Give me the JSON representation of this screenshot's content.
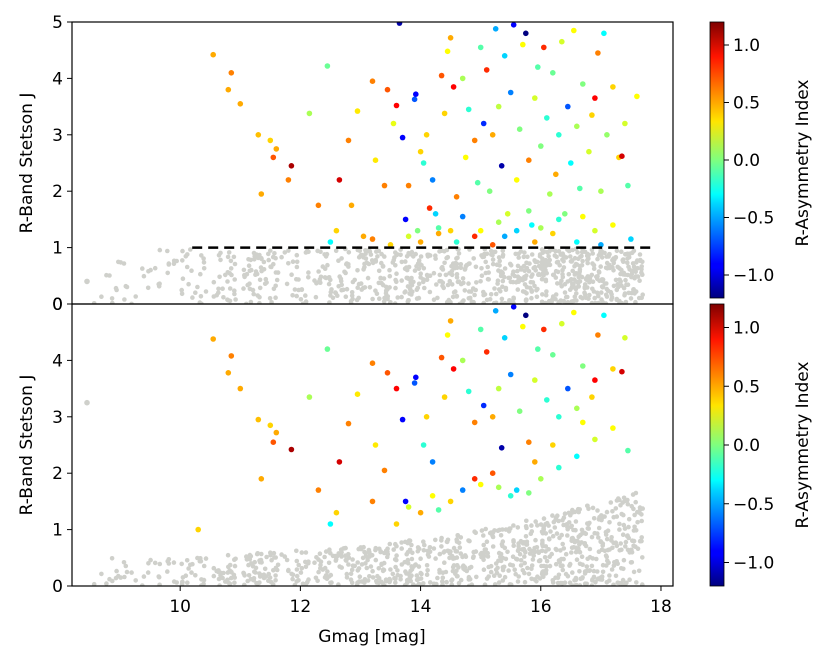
{
  "chart_data": {
    "type": "scatter",
    "xlabel": "Gmag [mag]",
    "xlim": [
      8.2,
      18.2
    ],
    "x_ticks": [
      "10",
      "12",
      "14",
      "16",
      "18"
    ],
    "panels": [
      {
        "name": "top",
        "ylabel": "R-Band Stetson J",
        "ylim": [
          0,
          5
        ],
        "y_ticks": [
          "0",
          "1",
          "2",
          "3",
          "4",
          "5"
        ],
        "threshold": {
          "y": 1.0,
          "style": "dashed",
          "color": "#000000",
          "x_range": [
            10.2,
            17.9
          ]
        },
        "colored_points": [
          [
            10.55,
            4.42,
            0.5
          ],
          [
            10.85,
            4.1,
            0.6
          ],
          [
            10.8,
            3.8,
            0.5
          ],
          [
            11.0,
            3.55,
            0.5
          ],
          [
            11.3,
            3.0,
            0.45
          ],
          [
            11.5,
            2.9,
            0.4
          ],
          [
            11.55,
            2.6,
            0.7
          ],
          [
            11.6,
            2.75,
            0.5
          ],
          [
            11.8,
            2.2,
            0.6
          ],
          [
            11.85,
            2.45,
            1.1
          ],
          [
            11.35,
            1.95,
            0.5
          ],
          [
            12.15,
            3.38,
            0.1
          ],
          [
            12.3,
            1.75,
            0.6
          ],
          [
            12.45,
            4.22,
            -0.05
          ],
          [
            12.65,
            2.2,
            1.0
          ],
          [
            12.8,
            2.9,
            0.6
          ],
          [
            12.85,
            1.75,
            0.5
          ],
          [
            12.95,
            3.42,
            0.35
          ],
          [
            13.05,
            1.2,
            0.5
          ],
          [
            13.2,
            3.95,
            0.6
          ],
          [
            13.25,
            2.55,
            0.35
          ],
          [
            13.4,
            2.1,
            0.6
          ],
          [
            13.45,
            3.8,
            0.7
          ],
          [
            13.55,
            3.2,
            0.25
          ],
          [
            13.6,
            3.52,
            0.9
          ],
          [
            13.65,
            4.98,
            -1.1
          ],
          [
            13.7,
            2.95,
            -0.9
          ],
          [
            13.75,
            1.5,
            -0.9
          ],
          [
            13.8,
            2.1,
            0.6
          ],
          [
            13.9,
            3.63,
            -0.7
          ],
          [
            13.92,
            3.72,
            -0.9
          ],
          [
            13.95,
            1.3,
            0.0
          ],
          [
            14.0,
            2.7,
            0.4
          ],
          [
            14.05,
            2.5,
            -0.2
          ],
          [
            14.1,
            3.0,
            0.4
          ],
          [
            14.15,
            1.7,
            0.8
          ],
          [
            14.2,
            2.2,
            -0.6
          ],
          [
            14.25,
            1.6,
            -0.4
          ],
          [
            14.3,
            1.25,
            0.5
          ],
          [
            14.35,
            4.05,
            0.7
          ],
          [
            14.4,
            3.38,
            0.4
          ],
          [
            14.45,
            4.48,
            0.3
          ],
          [
            14.5,
            4.72,
            0.5
          ],
          [
            14.55,
            3.85,
            0.9
          ],
          [
            14.6,
            1.9,
            0.6
          ],
          [
            14.7,
            4.0,
            0.1
          ],
          [
            14.75,
            2.6,
            0.3
          ],
          [
            14.8,
            3.45,
            -0.2
          ],
          [
            14.9,
            2.9,
            0.6
          ],
          [
            14.95,
            2.15,
            -0.1
          ],
          [
            15.0,
            4.55,
            -0.1
          ],
          [
            15.05,
            3.2,
            -0.8
          ],
          [
            15.1,
            4.15,
            0.8
          ],
          [
            15.15,
            2.0,
            0.0
          ],
          [
            15.2,
            3.0,
            0.5
          ],
          [
            15.25,
            4.88,
            -0.5
          ],
          [
            15.3,
            3.5,
            0.15
          ],
          [
            15.35,
            2.45,
            -1.1
          ],
          [
            15.4,
            4.4,
            -0.4
          ],
          [
            15.45,
            1.6,
            0.2
          ],
          [
            15.5,
            3.75,
            -0.6
          ],
          [
            15.55,
            4.95,
            -0.9
          ],
          [
            15.6,
            2.2,
            0.3
          ],
          [
            15.65,
            3.1,
            0.0
          ],
          [
            15.7,
            4.6,
            0.3
          ],
          [
            15.75,
            4.8,
            -1.2
          ],
          [
            15.8,
            2.55,
            0.6
          ],
          [
            15.85,
            1.4,
            -0.3
          ],
          [
            15.9,
            3.65,
            0.2
          ],
          [
            15.95,
            4.2,
            -0.1
          ],
          [
            16.0,
            2.8,
            0.0
          ],
          [
            16.05,
            4.55,
            0.8
          ],
          [
            16.1,
            3.3,
            -0.2
          ],
          [
            16.15,
            1.95,
            0.1
          ],
          [
            16.2,
            4.1,
            -0.05
          ],
          [
            16.25,
            2.3,
            0.5
          ],
          [
            16.3,
            3.0,
            -0.2
          ],
          [
            16.35,
            4.65,
            0.2
          ],
          [
            16.4,
            1.6,
            0.0
          ],
          [
            16.45,
            3.5,
            -0.7
          ],
          [
            16.5,
            2.5,
            -0.3
          ],
          [
            16.55,
            4.85,
            0.3
          ],
          [
            16.6,
            3.15,
            0.1
          ],
          [
            16.65,
            2.05,
            -0.1
          ],
          [
            16.7,
            3.9,
            0.0
          ],
          [
            16.8,
            2.7,
            0.2
          ],
          [
            16.85,
            3.35,
            0.4
          ],
          [
            16.9,
            3.65,
            0.9
          ],
          [
            16.95,
            4.45,
            0.6
          ],
          [
            17.0,
            2.0,
            0.1
          ],
          [
            17.05,
            4.8,
            -0.3
          ],
          [
            17.1,
            3.0,
            0.05
          ],
          [
            17.2,
            3.85,
            0.4
          ],
          [
            17.3,
            2.6,
            0.4
          ],
          [
            17.35,
            2.62,
            1.0
          ],
          [
            17.4,
            3.2,
            0.2
          ],
          [
            17.45,
            2.1,
            -0.1
          ],
          [
            17.6,
            3.68,
            0.3
          ],
          [
            17.5,
            1.15,
            -0.4
          ],
          [
            15.9,
            1.1,
            0.5
          ],
          [
            14.6,
            1.1,
            -0.2
          ],
          [
            13.5,
            1.05,
            0.4
          ],
          [
            12.6,
            1.3,
            0.4
          ],
          [
            12.5,
            1.1,
            -0.3
          ],
          [
            15.2,
            1.05,
            0.7
          ],
          [
            16.6,
            1.1,
            -0.3
          ],
          [
            17.0,
            1.05,
            -0.5
          ],
          [
            14.9,
            1.2,
            0.8
          ],
          [
            16.2,
            1.25,
            0.4
          ],
          [
            15.6,
            1.3,
            -0.4
          ],
          [
            14.3,
            1.35,
            -0.1
          ],
          [
            15.3,
            1.45,
            0.1
          ],
          [
            15.0,
            1.3,
            0.3
          ],
          [
            16.9,
            1.3,
            0.2
          ],
          [
            13.2,
            1.15,
            0.6
          ],
          [
            14.0,
            1.1,
            0.5
          ],
          [
            16.3,
            1.5,
            -0.2
          ],
          [
            14.7,
            1.55,
            -0.6
          ],
          [
            15.8,
            1.65,
            0.0
          ],
          [
            17.2,
            1.4,
            0.3
          ],
          [
            13.8,
            1.2,
            0.2
          ],
          [
            14.5,
            1.3,
            0.4
          ],
          [
            15.4,
            1.2,
            -0.5
          ],
          [
            16.0,
            1.35,
            0.1
          ],
          [
            16.7,
            1.55,
            0.3
          ]
        ]
      },
      {
        "name": "bottom",
        "ylabel": "R-Band Stetson J",
        "ylim": [
          0,
          5
        ],
        "y_ticks": [
          "0",
          "1",
          "2",
          "3",
          "4"
        ],
        "colored_points": [
          [
            10.55,
            4.38,
            0.5
          ],
          [
            10.85,
            4.08,
            0.6
          ],
          [
            10.8,
            3.78,
            0.5
          ],
          [
            11.0,
            3.5,
            0.5
          ],
          [
            11.3,
            2.95,
            0.45
          ],
          [
            11.5,
            2.85,
            0.4
          ],
          [
            11.55,
            2.55,
            0.7
          ],
          [
            11.6,
            2.72,
            0.5
          ],
          [
            11.85,
            2.42,
            1.1
          ],
          [
            11.35,
            1.9,
            0.5
          ],
          [
            12.15,
            3.35,
            0.1
          ],
          [
            12.3,
            1.7,
            0.6
          ],
          [
            12.45,
            4.2,
            -0.05
          ],
          [
            12.65,
            2.2,
            1.0
          ],
          [
            12.8,
            2.88,
            0.6
          ],
          [
            12.95,
            3.4,
            0.35
          ],
          [
            13.2,
            3.95,
            0.6
          ],
          [
            13.25,
            2.5,
            0.35
          ],
          [
            13.4,
            2.05,
            0.6
          ],
          [
            13.45,
            3.78,
            0.7
          ],
          [
            13.6,
            3.5,
            0.9
          ],
          [
            13.7,
            2.95,
            -0.9
          ],
          [
            13.75,
            1.5,
            -0.9
          ],
          [
            13.9,
            3.6,
            -0.7
          ],
          [
            13.92,
            3.7,
            -0.9
          ],
          [
            14.05,
            2.5,
            -0.2
          ],
          [
            14.1,
            3.0,
            0.4
          ],
          [
            14.2,
            2.2,
            -0.6
          ],
          [
            14.35,
            4.05,
            0.7
          ],
          [
            14.4,
            3.35,
            0.4
          ],
          [
            14.45,
            4.45,
            0.3
          ],
          [
            14.5,
            4.7,
            0.5
          ],
          [
            14.55,
            3.85,
            0.9
          ],
          [
            14.7,
            4.0,
            0.1
          ],
          [
            14.8,
            3.45,
            -0.2
          ],
          [
            14.9,
            2.9,
            0.6
          ],
          [
            15.0,
            4.55,
            -0.1
          ],
          [
            15.05,
            3.2,
            -0.8
          ],
          [
            15.1,
            4.15,
            0.8
          ],
          [
            15.2,
            3.0,
            0.5
          ],
          [
            15.25,
            4.88,
            -0.5
          ],
          [
            15.3,
            3.5,
            0.15
          ],
          [
            15.35,
            2.45,
            -1.1
          ],
          [
            15.4,
            4.4,
            -0.4
          ],
          [
            15.5,
            3.75,
            -0.6
          ],
          [
            15.55,
            4.95,
            -0.9
          ],
          [
            15.65,
            3.1,
            0.0
          ],
          [
            15.7,
            4.6,
            0.3
          ],
          [
            15.75,
            4.8,
            -1.2
          ],
          [
            15.8,
            2.55,
            0.6
          ],
          [
            15.9,
            3.65,
            0.2
          ],
          [
            15.95,
            4.2,
            -0.1
          ],
          [
            16.05,
            4.55,
            0.8
          ],
          [
            16.1,
            3.3,
            -0.2
          ],
          [
            16.2,
            4.1,
            -0.05
          ],
          [
            16.3,
            3.0,
            -0.2
          ],
          [
            16.35,
            4.65,
            0.2
          ],
          [
            16.45,
            3.5,
            -0.7
          ],
          [
            16.55,
            4.85,
            0.3
          ],
          [
            16.6,
            3.15,
            0.1
          ],
          [
            16.7,
            3.9,
            0.0
          ],
          [
            16.85,
            3.35,
            0.4
          ],
          [
            16.9,
            3.65,
            0.9
          ],
          [
            16.95,
            4.45,
            0.6
          ],
          [
            17.05,
            4.8,
            -0.3
          ],
          [
            17.2,
            3.85,
            0.4
          ],
          [
            17.35,
            3.8,
            1.0
          ],
          [
            17.4,
            4.4,
            0.2
          ],
          [
            17.45,
            2.4,
            -0.1
          ],
          [
            10.3,
            1.0,
            0.4
          ],
          [
            12.6,
            1.3,
            0.4
          ],
          [
            12.5,
            1.1,
            -0.3
          ],
          [
            13.2,
            1.5,
            0.6
          ],
          [
            13.8,
            1.4,
            0.2
          ],
          [
            14.0,
            1.3,
            0.5
          ],
          [
            14.3,
            1.35,
            -0.1
          ],
          [
            14.5,
            1.5,
            0.4
          ],
          [
            14.7,
            1.7,
            -0.6
          ],
          [
            15.0,
            1.8,
            0.3
          ],
          [
            15.3,
            1.75,
            0.1
          ],
          [
            15.6,
            1.7,
            -0.4
          ],
          [
            15.8,
            1.65,
            0.0
          ],
          [
            16.0,
            1.9,
            0.1
          ],
          [
            16.3,
            2.1,
            -0.2
          ],
          [
            16.6,
            2.3,
            -0.3
          ],
          [
            16.9,
            2.6,
            0.2
          ],
          [
            17.2,
            2.8,
            0.3
          ],
          [
            14.9,
            1.9,
            0.8
          ],
          [
            15.2,
            2.0,
            0.7
          ],
          [
            15.5,
            1.6,
            -0.2
          ],
          [
            14.2,
            1.6,
            0.3
          ],
          [
            13.6,
            1.1,
            0.4
          ],
          [
            15.9,
            2.2,
            0.5
          ],
          [
            16.2,
            2.5,
            0.4
          ],
          [
            16.7,
            2.9,
            0.3
          ]
        ]
      }
    ],
    "colorbar": {
      "label": "R-Asymmetry Index",
      "range": [
        -1.2,
        1.2
      ],
      "ticks": [
        "1.0",
        "0.5",
        "0.0",
        "−0.5",
        "−1.0"
      ],
      "tick_values": [
        1.0,
        0.5,
        0.0,
        -0.5,
        -1.0
      ]
    },
    "background_color": "#cfd0cb"
  }
}
